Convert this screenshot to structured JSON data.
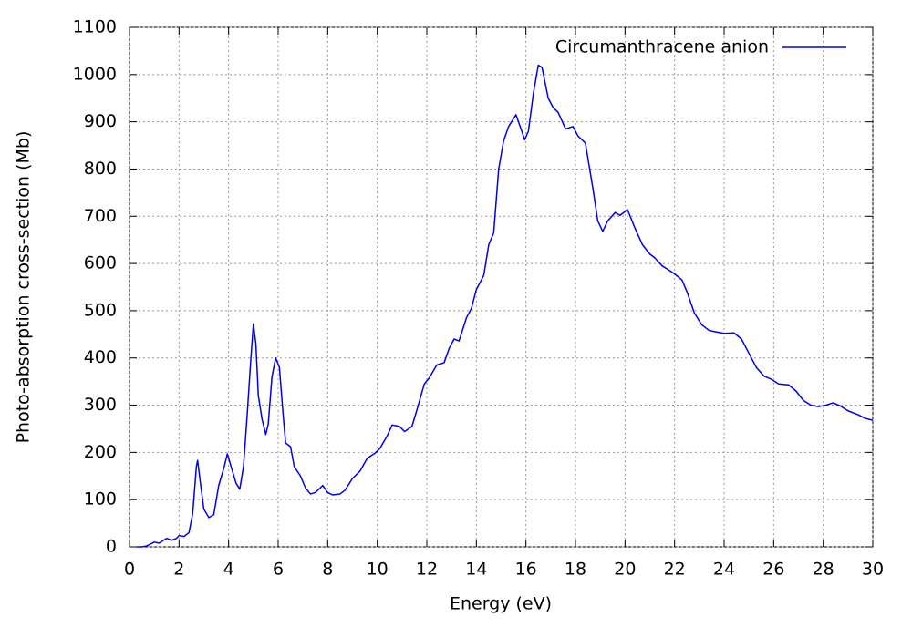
{
  "chart_data": {
    "type": "line",
    "xlabel": "Energy (eV)",
    "ylabel": "Photo-absorption cross-section (Mb)",
    "x": [
      0.3,
      0.5,
      0.7,
      1.0,
      1.2,
      1.5,
      1.7,
      1.9,
      2.0,
      2.2,
      2.4,
      2.55,
      2.7,
      2.75,
      2.85,
      3.0,
      3.2,
      3.4,
      3.6,
      3.8,
      3.95,
      4.1,
      4.3,
      4.45,
      4.6,
      4.75,
      4.9,
      5.0,
      5.1,
      5.2,
      5.35,
      5.5,
      5.6,
      5.75,
      5.9,
      6.05,
      6.2,
      6.3,
      6.5,
      6.65,
      6.9,
      7.1,
      7.3,
      7.5,
      7.8,
      8.0,
      8.2,
      8.5,
      8.7,
      9.0,
      9.3,
      9.6,
      9.9,
      10.1,
      10.4,
      10.6,
      10.9,
      11.1,
      11.4,
      11.6,
      11.9,
      12.1,
      12.4,
      12.7,
      12.9,
      13.1,
      13.3,
      13.6,
      13.8,
      14.0,
      14.3,
      14.5,
      14.7,
      14.9,
      15.1,
      15.3,
      15.6,
      15.8,
      15.95,
      16.1,
      16.3,
      16.5,
      16.65,
      16.9,
      17.1,
      17.3,
      17.6,
      17.9,
      18.1,
      18.4,
      18.7,
      18.9,
      19.1,
      19.3,
      19.6,
      19.8,
      20.1,
      20.4,
      20.7,
      21.0,
      21.2,
      21.5,
      21.8,
      22.0,
      22.3,
      22.5,
      22.8,
      23.1,
      23.4,
      23.7,
      24.0,
      24.4,
      24.7,
      25.0,
      25.3,
      25.6,
      25.9,
      26.2,
      26.6,
      26.9,
      27.2,
      27.5,
      27.8,
      28.1,
      28.4,
      28.7,
      29.0,
      29.4,
      29.7,
      30.0
    ],
    "series": [
      {
        "name": "Circumanthracene anion",
        "color": "#0000ee",
        "values": [
          0,
          0,
          2,
          10,
          8,
          18,
          14,
          18,
          24,
          22,
          30,
          70,
          170,
          183,
          140,
          80,
          62,
          68,
          130,
          165,
          197,
          170,
          135,
          122,
          170,
          280,
          400,
          472,
          430,
          320,
          270,
          238,
          260,
          360,
          400,
          380,
          280,
          220,
          212,
          170,
          150,
          125,
          112,
          115,
          130,
          115,
          110,
          112,
          120,
          145,
          160,
          188,
          198,
          208,
          235,
          258,
          255,
          244,
          255,
          290,
          345,
          358,
          385,
          390,
          420,
          440,
          436,
          485,
          505,
          545,
          575,
          640,
          665,
          800,
          860,
          890,
          915,
          885,
          862,
          880,
          960,
          1020,
          1015,
          950,
          930,
          920,
          885,
          890,
          870,
          855,
          760,
          690,
          668,
          690,
          708,
          702,
          714,
          675,
          640,
          620,
          612,
          595,
          585,
          578,
          565,
          540,
          495,
          470,
          458,
          455,
          452,
          453,
          440,
          410,
          380,
          362,
          355,
          345,
          343,
          330,
          310,
          300,
          297,
          300,
          305,
          298,
          288,
          280,
          272,
          268
        ]
      }
    ],
    "xlim": [
      0,
      30
    ],
    "xticks": [
      0,
      2,
      4,
      6,
      8,
      10,
      12,
      14,
      16,
      18,
      20,
      22,
      24,
      26,
      28,
      30
    ],
    "ylim": [
      0,
      1100
    ],
    "yticks": [
      0,
      100,
      200,
      300,
      400,
      500,
      600,
      700,
      800,
      900,
      1000,
      1100
    ],
    "grid": true,
    "legend": "top right"
  }
}
